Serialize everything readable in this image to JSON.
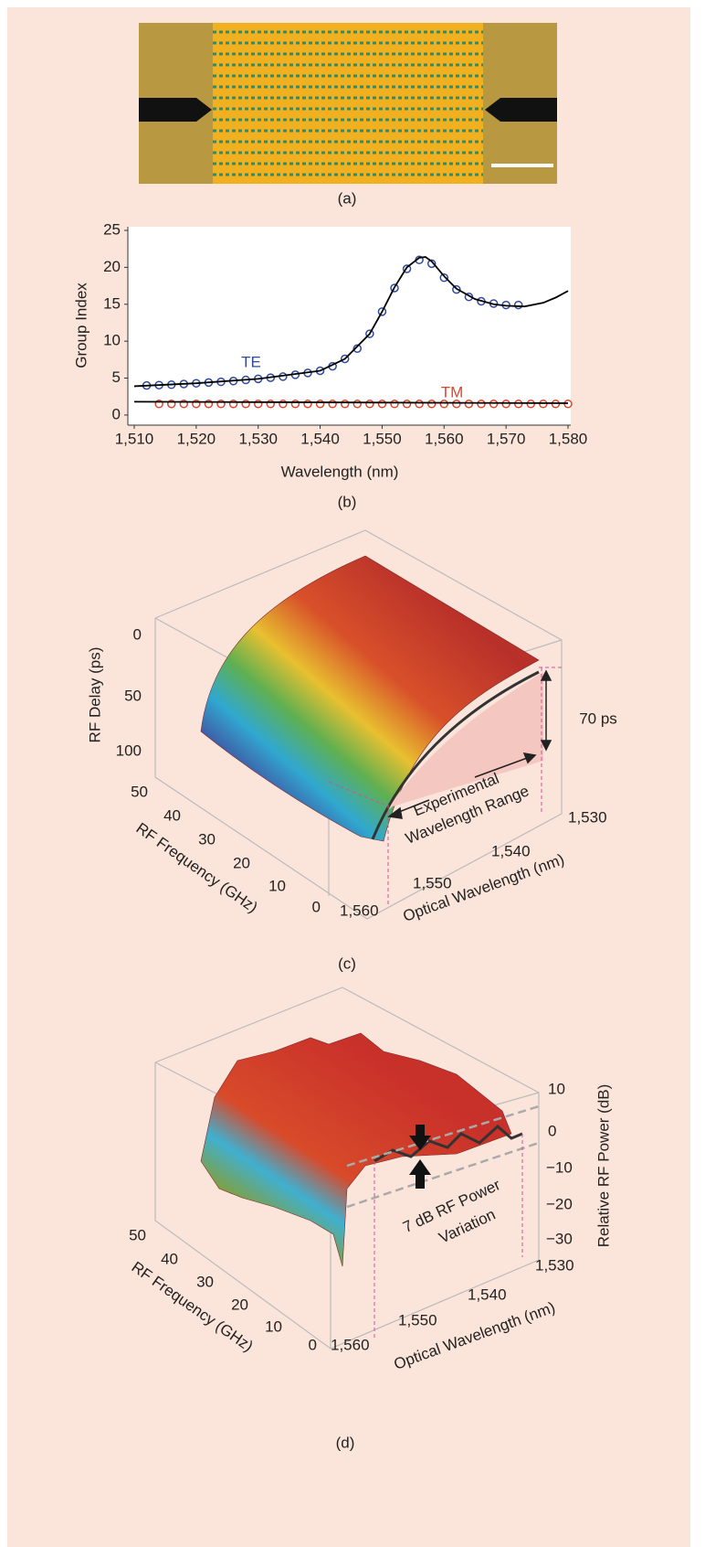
{
  "panel_a": {
    "caption": "(a)"
  },
  "chart_data": {
    "type": "scatter",
    "xlabel": "Wavelength (nm)",
    "ylabel": "Group Index",
    "caption": "(b)",
    "xlim": [
      1510,
      1580
    ],
    "ylim": [
      -1,
      25
    ],
    "xticks": [
      {
        "value": 1510,
        "label": "1,510"
      },
      {
        "value": 1520,
        "label": "1,520"
      },
      {
        "value": 1530,
        "label": "1,530"
      },
      {
        "value": 1540,
        "label": "1,540"
      },
      {
        "value": 1550,
        "label": "1,550"
      },
      {
        "value": 1560,
        "label": "1,560"
      },
      {
        "value": 1570,
        "label": "1,570"
      },
      {
        "value": 1580,
        "label": "1,580"
      }
    ],
    "yticks": [
      0,
      5,
      10,
      15,
      20,
      25
    ],
    "series": [
      {
        "name": "TE",
        "color": "#2e4a9e",
        "marker": "circle",
        "x": [
          1512,
          1514,
          1516,
          1518,
          1520,
          1522,
          1524,
          1526,
          1528,
          1530,
          1532,
          1534,
          1536,
          1538,
          1540,
          1542,
          1544,
          1546,
          1548,
          1550,
          1552,
          1554,
          1556,
          1558,
          1560,
          1562,
          1564,
          1566,
          1568,
          1570,
          1572
        ],
        "values": [
          4.0,
          4.05,
          4.1,
          4.2,
          4.3,
          4.4,
          4.5,
          4.6,
          4.75,
          4.9,
          5.05,
          5.2,
          5.45,
          5.7,
          6.0,
          6.6,
          7.6,
          9.0,
          11.0,
          14.0,
          17.2,
          19.8,
          21.0,
          20.5,
          18.6,
          17.0,
          16.0,
          15.4,
          15.1,
          14.9,
          14.9
        ]
      },
      {
        "name": "TM",
        "color": "#e0452a",
        "marker": "circle",
        "x": [
          1514,
          1516,
          1518,
          1520,
          1522,
          1524,
          1526,
          1528,
          1530,
          1532,
          1534,
          1536,
          1538,
          1540,
          1542,
          1544,
          1546,
          1548,
          1550,
          1552,
          1554,
          1556,
          1558,
          1560,
          1562,
          1564,
          1566,
          1568,
          1570,
          1572,
          1574,
          1576,
          1578,
          1580
        ],
        "values": [
          1.5,
          1.5,
          1.5,
          1.5,
          1.5,
          1.5,
          1.5,
          1.5,
          1.5,
          1.5,
          1.5,
          1.5,
          1.5,
          1.5,
          1.5,
          1.5,
          1.5,
          1.5,
          1.5,
          1.5,
          1.5,
          1.5,
          1.5,
          1.5,
          1.5,
          1.5,
          1.5,
          1.5,
          1.5,
          1.5,
          1.5,
          1.5,
          1.5,
          1.5
        ]
      },
      {
        "color": "#000000",
        "marker": "none",
        "x": [
          1510,
          1520,
          1530,
          1540,
          1544,
          1548,
          1550,
          1552,
          1554,
          1556,
          1557,
          1558,
          1560,
          1562,
          1565,
          1568,
          1570,
          1573,
          1576,
          1578,
          1580
        ],
        "values": [
          3.9,
          4.3,
          4.9,
          6.0,
          7.6,
          11.0,
          14.0,
          17.3,
          20.0,
          21.3,
          21.4,
          20.8,
          18.8,
          17.1,
          15.7,
          15.0,
          14.8,
          14.7,
          15.2,
          15.9,
          16.8
        ]
      },
      {
        "color": "#000000",
        "marker": "none",
        "x": [
          1510,
          1580
        ],
        "values": [
          1.8,
          1.6
        ]
      }
    ]
  },
  "panel_c": {
    "caption": "(c)",
    "zlabel": "RF Delay (ps)",
    "zticks": [
      0,
      50,
      100
    ],
    "ylabel": "RF Frequency (GHz)",
    "yticks": [
      50,
      40,
      30,
      20,
      10,
      0
    ],
    "xlabel": "Optical Wavelength (nm)",
    "xticks": [
      {
        "value": 1530,
        "label": "1,530"
      },
      {
        "value": 1540,
        "label": "1,540"
      },
      {
        "value": 1550,
        "label": "1,550"
      },
      {
        "value": 1560,
        "label": "1,560"
      }
    ],
    "annotations": [
      "70 ps",
      "Experimental",
      "Wavelength Range"
    ]
  },
  "panel_d": {
    "caption": "(d)",
    "zlabel": "Relative RF Power (dB)",
    "zticks": [
      10,
      0,
      {
        "value": -10,
        "label": "−10"
      },
      {
        "value": -20,
        "label": "−20"
      },
      {
        "value": -30,
        "label": "−30"
      }
    ],
    "ylabel": "RF Frequency (GHz)",
    "yticks": [
      50,
      40,
      30,
      20,
      10,
      0
    ],
    "xlabel": "Optical Wavelength (nm)",
    "xticks": [
      {
        "value": 1530,
        "label": "1,530"
      },
      {
        "value": 1540,
        "label": "1,540"
      },
      {
        "value": 1550,
        "label": "1,550"
      },
      {
        "value": 1560,
        "label": "1,560"
      }
    ],
    "annotations": [
      "7 dB RF Power",
      "Variation"
    ]
  }
}
